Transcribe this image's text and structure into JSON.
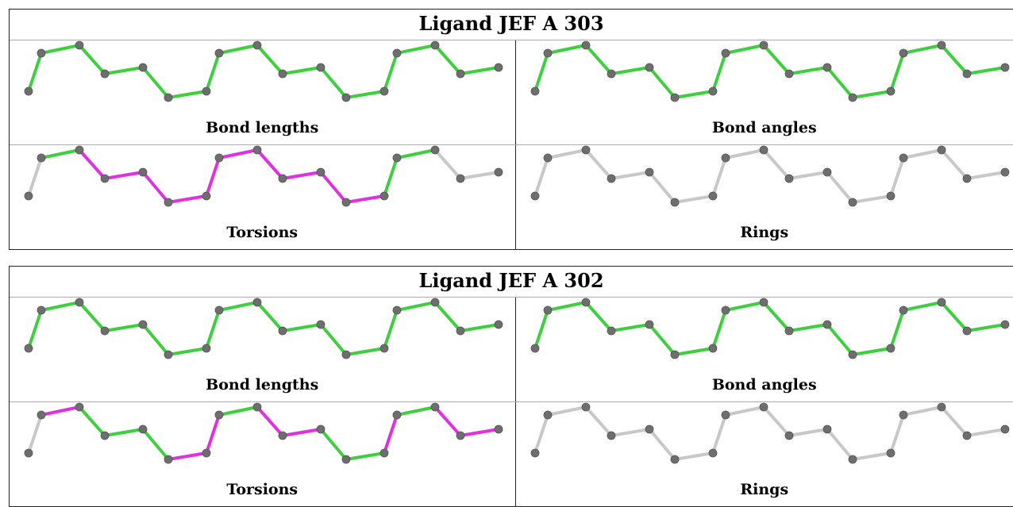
{
  "colors": {
    "green": "#3ecf3e",
    "magenta": "#e030e0",
    "gray": "#c8c8c8",
    "atom": "#6e6e6e"
  },
  "ligands": [
    {
      "title": "Ligand JEF A 303",
      "panels": [
        {
          "caption": "Bond lengths",
          "bond_colors": [
            "green",
            "green",
            "green",
            "green",
            "green",
            "green",
            "green",
            "green",
            "green",
            "green",
            "green",
            "green",
            "green",
            "green",
            "green",
            "green",
            "green",
            "green",
            "green",
            "green",
            "green",
            "green",
            "green",
            "green"
          ]
        },
        {
          "caption": "Bond angles",
          "bond_colors": [
            "green",
            "green",
            "green",
            "green",
            "green",
            "green",
            "green",
            "green",
            "green",
            "green",
            "green",
            "green",
            "green",
            "green",
            "green",
            "green",
            "green",
            "green",
            "green",
            "green",
            "green",
            "green",
            "green",
            "green"
          ]
        },
        {
          "caption": "Torsions",
          "bond_colors": [
            "gray",
            "green",
            "magenta",
            "magenta",
            "magenta",
            "magenta",
            "magenta",
            "magenta",
            "magenta",
            "magenta",
            "magenta",
            "magenta",
            "green",
            "green",
            "gray",
            "gray",
            "gray",
            "gray",
            "gray",
            "gray",
            "gray",
            "gray",
            "gray",
            "gray"
          ]
        },
        {
          "caption": "Rings",
          "bond_colors": [
            "gray",
            "gray",
            "gray",
            "gray",
            "gray",
            "gray",
            "gray",
            "gray",
            "gray",
            "gray",
            "gray",
            "gray",
            "gray",
            "gray",
            "gray",
            "gray",
            "gray",
            "gray",
            "gray",
            "gray",
            "gray",
            "gray",
            "gray",
            "gray"
          ]
        }
      ]
    },
    {
      "title": "Ligand JEF A 302",
      "panels": [
        {
          "caption": "Bond lengths",
          "bond_colors": [
            "green",
            "green",
            "green",
            "green",
            "green",
            "green",
            "green",
            "green",
            "green",
            "green",
            "green",
            "green",
            "green",
            "green",
            "green",
            "green",
            "green",
            "green",
            "green",
            "green",
            "green",
            "green",
            "green",
            "green"
          ]
        },
        {
          "caption": "Bond angles",
          "bond_colors": [
            "green",
            "green",
            "green",
            "green",
            "green",
            "green",
            "green",
            "green",
            "green",
            "green",
            "green",
            "green",
            "green",
            "green",
            "green",
            "green",
            "green",
            "green",
            "green",
            "green",
            "green",
            "green",
            "green",
            "green"
          ]
        },
        {
          "caption": "Torsions",
          "bond_colors": [
            "gray",
            "magenta",
            "green",
            "green",
            "green",
            "magenta",
            "magenta",
            "green",
            "magenta",
            "magenta",
            "green",
            "green",
            "magenta",
            "green",
            "magenta",
            "magenta",
            "gray",
            "gray",
            "gray",
            "gray",
            "gray",
            "gray",
            "gray",
            "gray"
          ]
        },
        {
          "caption": "Rings",
          "bond_colors": [
            "gray",
            "gray",
            "gray",
            "gray",
            "gray",
            "gray",
            "gray",
            "gray",
            "gray",
            "gray",
            "gray",
            "gray",
            "gray",
            "gray",
            "gray",
            "gray",
            "gray",
            "gray",
            "gray",
            "gray",
            "gray",
            "gray",
            "gray",
            "gray"
          ]
        }
      ]
    }
  ]
}
